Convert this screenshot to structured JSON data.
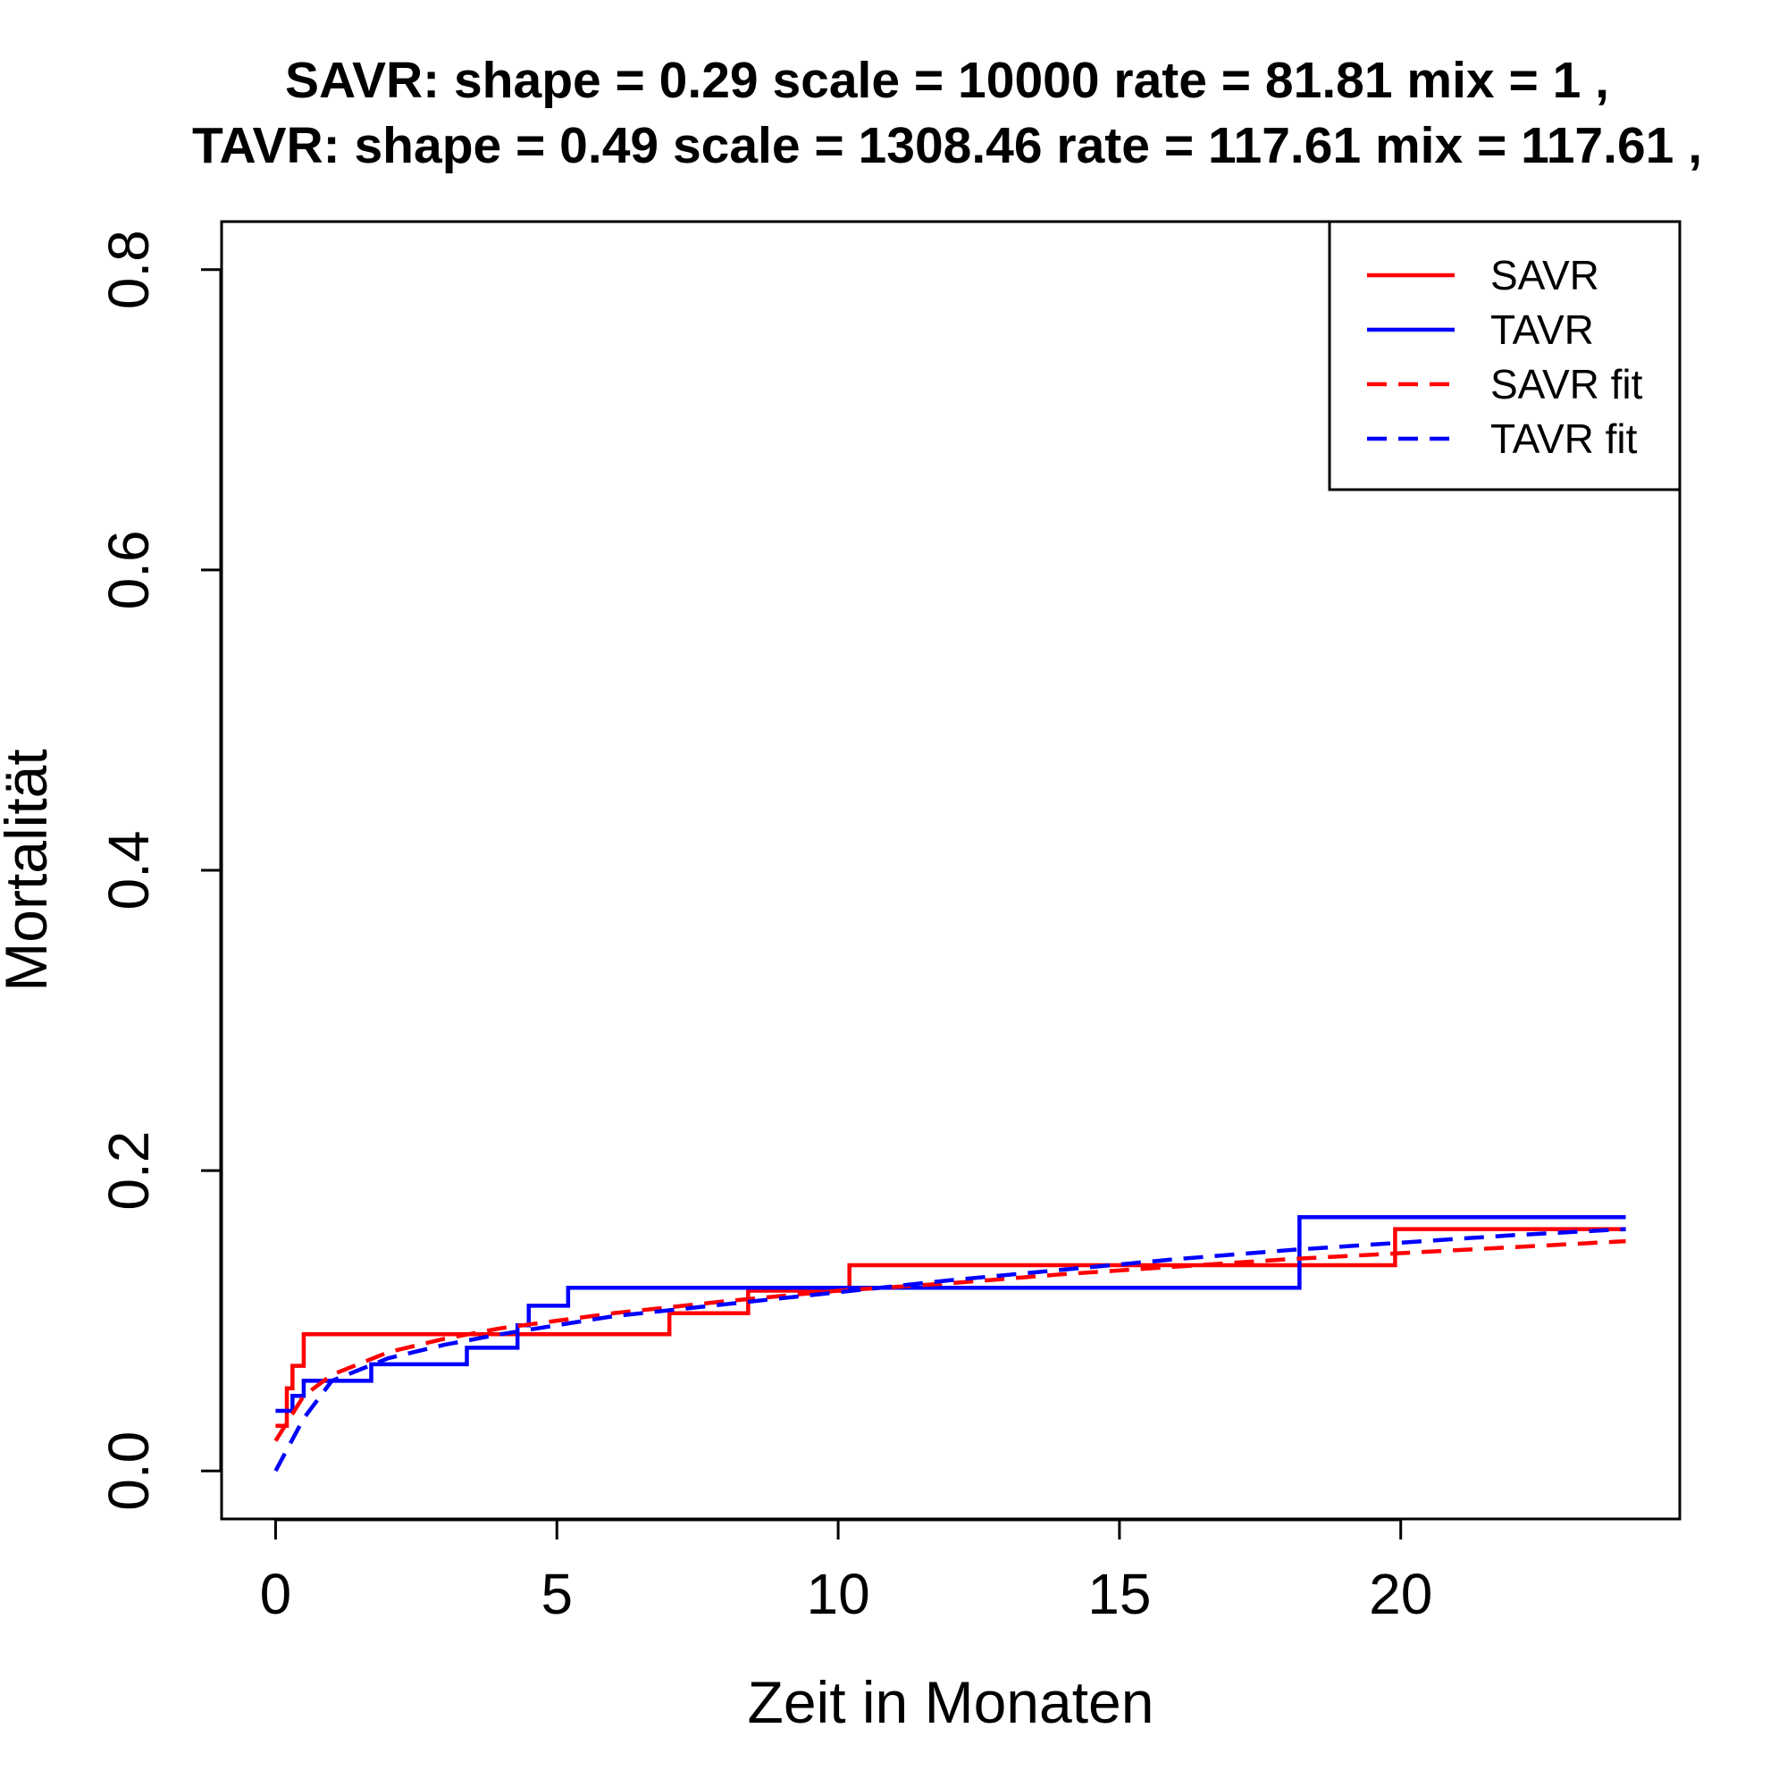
{
  "chart_data": {
    "type": "line",
    "title_lines": [
      "SAVR:  shape =  0.29   scale =  10000   rate =  81.81   mix =  1 ,",
      "TAVR:  shape =  0.49   scale =  1308.46   rate =  117.61   mix =  117.61 ,"
    ],
    "xlabel": "Zeit in Monaten",
    "ylabel": "Mortalität",
    "xlim": [
      -0.96,
      24.96
    ],
    "ylim": [
      -0.032,
      0.832
    ],
    "xticks": [
      0,
      5,
      10,
      15,
      20
    ],
    "xtick_labels": [
      "0",
      "5",
      "10",
      "15",
      "20"
    ],
    "yticks": [
      0.0,
      0.2,
      0.4,
      0.6,
      0.8
    ],
    "ytick_labels": [
      "0.0",
      "0.2",
      "0.4",
      "0.6",
      "0.8"
    ],
    "grid": false,
    "legend_position": "top-right",
    "colors": {
      "SAVR": "#ff0000",
      "TAVR": "#0000ff"
    },
    "series": [
      {
        "name": "SAVR",
        "style": "step",
        "color": "#ff0000",
        "x": [
          0,
          0.2,
          0.3,
          0.5,
          7.0,
          8.4,
          10.2,
          19.9,
          24.0
        ],
        "y": [
          0.03,
          0.055,
          0.07,
          0.091,
          0.105,
          0.12,
          0.137,
          0.161,
          0.161
        ]
      },
      {
        "name": "TAVR",
        "style": "step",
        "color": "#0000ff",
        "x": [
          0,
          0.3,
          0.5,
          1.7,
          3.4,
          4.3,
          4.5,
          5.2,
          18.2,
          24.0
        ],
        "y": [
          0.04,
          0.05,
          0.06,
          0.071,
          0.082,
          0.097,
          0.11,
          0.122,
          0.169,
          0.169
        ]
      },
      {
        "name": "SAVR fit",
        "style": "dashed",
        "color": "#ff0000",
        "x": [
          0,
          0.5,
          1,
          2,
          3,
          4,
          5,
          6,
          8,
          10,
          12,
          14,
          16,
          18,
          20,
          22,
          24
        ],
        "y": [
          0.02,
          0.05,
          0.064,
          0.079,
          0.088,
          0.095,
          0.1,
          0.105,
          0.113,
          0.12,
          0.125,
          0.131,
          0.136,
          0.141,
          0.145,
          0.149,
          0.153
        ]
      },
      {
        "name": "TAVR fit",
        "style": "dashed",
        "color": "#0000ff",
        "x": [
          0,
          0.5,
          1,
          2,
          3,
          4,
          5,
          6,
          8,
          10,
          12,
          14,
          16,
          18,
          20,
          22,
          24
        ],
        "y": [
          0.0,
          0.035,
          0.06,
          0.075,
          0.084,
          0.091,
          0.097,
          0.103,
          0.111,
          0.119,
          0.127,
          0.134,
          0.141,
          0.147,
          0.152,
          0.157,
          0.161
        ]
      }
    ]
  }
}
